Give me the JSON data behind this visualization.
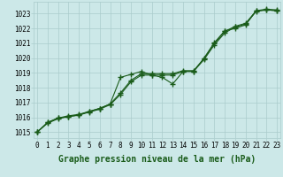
{
  "xlabel": "Graphe pression niveau de la mer (hPa)",
  "hours": [
    0,
    1,
    2,
    3,
    4,
    5,
    6,
    7,
    8,
    9,
    10,
    11,
    12,
    13,
    14,
    15,
    16,
    17,
    18,
    19,
    20,
    21,
    22,
    23
  ],
  "line_smooth1": [
    1015.0,
    1015.6,
    1015.9,
    1016.05,
    1016.15,
    1016.35,
    1016.55,
    1016.85,
    1017.55,
    1018.4,
    1018.85,
    1018.85,
    1018.85,
    1018.85,
    1019.1,
    1019.1,
    1019.9,
    1020.9,
    1021.7,
    1022.1,
    1022.3,
    1023.15,
    1023.25,
    1023.2
  ],
  "line_smooth2": [
    1015.0,
    1015.65,
    1015.95,
    1016.1,
    1016.2,
    1016.4,
    1016.6,
    1016.9,
    1017.65,
    1018.5,
    1018.95,
    1018.95,
    1018.95,
    1018.95,
    1019.15,
    1019.15,
    1019.95,
    1021.0,
    1021.8,
    1022.15,
    1022.35,
    1023.2,
    1023.3,
    1023.25
  ],
  "line_bumpy": [
    1015.0,
    1015.65,
    1015.95,
    1016.05,
    1016.15,
    1016.4,
    1016.6,
    1016.9,
    1018.7,
    1018.9,
    1019.1,
    1018.85,
    1018.7,
    1018.25,
    1019.1,
    1019.1,
    1020.0,
    1021.05,
    1021.85,
    1022.0,
    1022.25,
    1023.2,
    1023.25,
    1023.2
  ],
  "bg_color": "#cce8e8",
  "grid_color": "#aacccc",
  "line_color": "#1a5c1a",
  "marker": "+",
  "markersize": 4,
  "linewidth": 0.8,
  "markeredgewidth": 1.0,
  "ylim_min": 1014.6,
  "ylim_max": 1023.8,
  "xlim_min": -0.3,
  "xlim_max": 23.3,
  "yticks": [
    1015,
    1016,
    1017,
    1018,
    1019,
    1020,
    1021,
    1022,
    1023
  ],
  "xticks": [
    0,
    1,
    2,
    3,
    4,
    5,
    6,
    7,
    8,
    9,
    10,
    11,
    12,
    13,
    14,
    15,
    16,
    17,
    18,
    19,
    20,
    21,
    22,
    23
  ],
  "tick_fontsize": 5.5,
  "label_fontsize": 7.0,
  "label_fontweight": "bold"
}
